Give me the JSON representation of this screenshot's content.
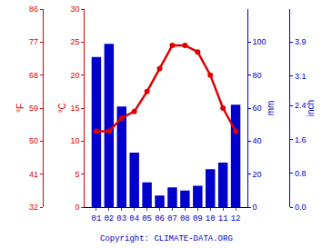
{
  "chart_data": {
    "type": "bar",
    "categories": [
      "01",
      "02",
      "03",
      "04",
      "05",
      "06",
      "07",
      "08",
      "09",
      "10",
      "11",
      "12"
    ],
    "series": [
      {
        "type": "bar",
        "color": "#0000cc",
        "values": [
          91,
          99,
          61,
          33,
          15,
          7,
          12,
          10,
          13,
          23,
          27,
          62
        ]
      },
      {
        "type": "line",
        "color": "#dd0000",
        "marker": "circle",
        "axis": "y2",
        "values": [
          11.5,
          11.5,
          13.5,
          14.5,
          17.5,
          21.0,
          24.5,
          24.5,
          23.5,
          20.0,
          15.0,
          11.5
        ]
      }
    ],
    "ylabel": "mm",
    "ylim": [
      0,
      120
    ],
    "yticks": [
      0,
      20,
      40,
      60,
      80,
      100
    ],
    "y2label": "°C",
    "y2lim": [
      0,
      30
    ],
    "y2ticks": [
      0,
      5,
      10,
      15,
      20,
      25,
      30
    ],
    "y3label": "°F",
    "y3lim": [
      32,
      86
    ],
    "y3ticks": [
      32,
      41,
      50,
      59,
      68,
      77,
      86
    ],
    "y4label": "inch",
    "y4lim": [
      0,
      4.68
    ],
    "y4ticks": [
      {
        "value": 0.0,
        "label": "0.0"
      },
      0.8,
      1.6,
      2.4,
      3.1,
      3.9
    ],
    "grid": true,
    "annotations": [
      "Copyright: CLIMATE-DATA.ORG"
    ]
  }
}
